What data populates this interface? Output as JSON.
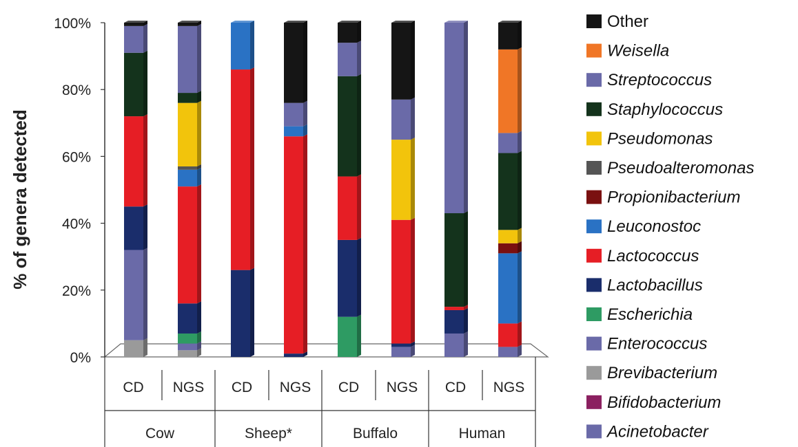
{
  "chart_data": {
    "type": "stacked-bar",
    "ylabel": "% of genera detected",
    "ylim": [
      0,
      100
    ],
    "yticks": [
      "0%",
      "20%",
      "40%",
      "60%",
      "80%",
      "100%"
    ],
    "grid": false,
    "legend_position": "right",
    "groups": [
      {
        "label": "Cow",
        "bars": [
          "CD",
          "NGS"
        ]
      },
      {
        "label": "Sheep*",
        "bars": [
          "CD",
          "NGS"
        ]
      },
      {
        "label": "Buffalo",
        "bars": [
          "CD",
          "NGS"
        ]
      },
      {
        "label": "Human",
        "bars": [
          "CD",
          "NGS"
        ]
      }
    ],
    "categories": [
      "Cow CD",
      "Cow NGS",
      "Sheep* CD",
      "Sheep* NGS",
      "Buffalo CD",
      "Buffalo NGS",
      "Human CD",
      "Human NGS"
    ],
    "series": [
      {
        "name": "Acinetobacter",
        "italic": true,
        "color": "#6a6aa8",
        "values": [
          0,
          0,
          0,
          0,
          0,
          0,
          0,
          0
        ]
      },
      {
        "name": "Bifidobacterium",
        "italic": true,
        "color": "#8b2060",
        "values": [
          0,
          0,
          0,
          0,
          0,
          0,
          0,
          0
        ]
      },
      {
        "name": "Brevibacterium",
        "italic": true,
        "color": "#9a9a9a",
        "values": [
          5,
          2,
          0,
          0,
          0,
          0,
          0,
          0
        ]
      },
      {
        "name": "Enterococcus",
        "italic": true,
        "color": "#6a6aa8",
        "values": [
          27,
          2,
          0,
          0,
          0,
          3,
          7,
          3
        ]
      },
      {
        "name": "Escherichia",
        "italic": true,
        "color": "#2e9b63",
        "values": [
          0,
          3,
          0,
          0,
          12,
          0,
          0,
          0
        ]
      },
      {
        "name": "Lactobacillus",
        "italic": true,
        "color": "#1a2d6b",
        "values": [
          13,
          9,
          26,
          1,
          23,
          1,
          7,
          0
        ]
      },
      {
        "name": "Lactococcus",
        "italic": true,
        "color": "#e61e25",
        "values": [
          27,
          35,
          60,
          65,
          19,
          37,
          1,
          7
        ]
      },
      {
        "name": "Leuconostoc",
        "italic": true,
        "color": "#2a72c4",
        "values": [
          0,
          5,
          14,
          3,
          0,
          0,
          0,
          21
        ]
      },
      {
        "name": "Propionibacterium",
        "italic": true,
        "color": "#7a1010",
        "values": [
          0,
          0,
          0,
          0,
          0,
          0,
          0,
          3
        ]
      },
      {
        "name": "Pseudoalteromonas",
        "italic": true,
        "color": "#555555",
        "values": [
          0,
          1,
          0,
          0,
          0,
          0,
          0,
          0
        ]
      },
      {
        "name": "Pseudomonas",
        "italic": true,
        "color": "#f2c40c",
        "values": [
          0,
          19,
          0,
          0,
          0,
          24,
          0,
          4
        ]
      },
      {
        "name": "Staphylococcus",
        "italic": true,
        "color": "#14331c",
        "values": [
          19,
          3,
          0,
          0,
          30,
          0,
          28,
          23
        ]
      },
      {
        "name": "Streptococcus",
        "italic": true,
        "color": "#6a6aa8",
        "values": [
          8,
          20,
          0,
          7,
          10,
          12,
          57,
          6
        ]
      },
      {
        "name": "Weisella",
        "italic": true,
        "color": "#f07626",
        "values": [
          0,
          0,
          0,
          0,
          0,
          0,
          0,
          25
        ]
      },
      {
        "name": "Other",
        "italic": false,
        "color": "#151515",
        "values": [
          1,
          1,
          0,
          24,
          6,
          23,
          0,
          8
        ]
      }
    ]
  }
}
